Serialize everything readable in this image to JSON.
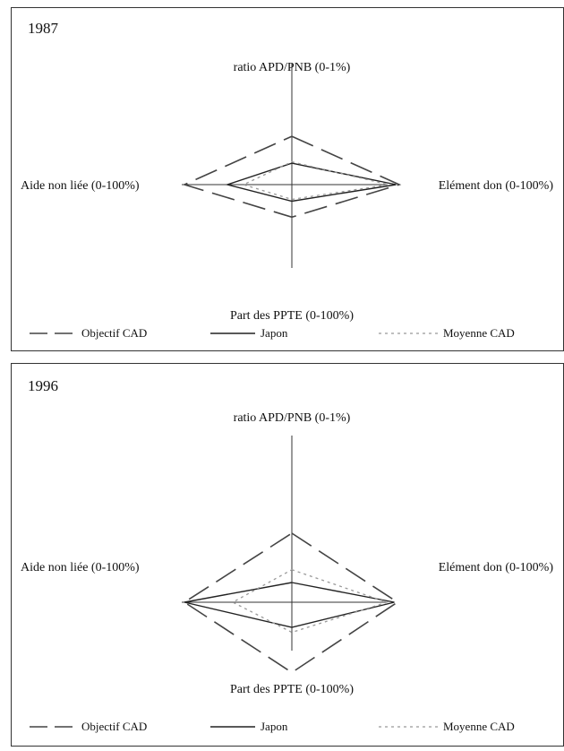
{
  "colors": {
    "objectif": "#444444",
    "japon": "#222222",
    "moyenne": "#999999",
    "axis": "#333333"
  },
  "chart_data": [
    {
      "type": "radar",
      "title": "1987",
      "axes": [
        {
          "label": "ratio APD/PNB (0-1%)",
          "range": [
            0,
            1
          ]
        },
        {
          "label": "Elément don (0-100%)",
          "range": [
            0,
            100
          ]
        },
        {
          "label": "Part des PPTE (0-100%)",
          "range": [
            0,
            100
          ]
        },
        {
          "label": "Aide non liée (0-100%)",
          "range": [
            0,
            100
          ]
        }
      ],
      "series": [
        {
          "name": "Objectif CAD",
          "style": "dashed",
          "values": [
            0.7,
            100,
            55,
            100
          ]
        },
        {
          "name": "Japon",
          "style": "solid",
          "values": [
            0.31,
            97,
            28,
            60
          ]
        },
        {
          "name": "Moyenne CAD",
          "style": "dotted",
          "values": [
            0.33,
            90,
            25,
            45
          ]
        }
      ]
    },
    {
      "type": "radar",
      "title": "1996",
      "axes": [
        {
          "label": "ratio APD/PNB (0-1%)",
          "range": [
            0,
            1
          ]
        },
        {
          "label": "Elément don (0-100%)",
          "range": [
            0,
            100
          ]
        },
        {
          "label": "Part des PPTE (0-100%)",
          "range": [
            0,
            100
          ]
        },
        {
          "label": "Aide non liée (0-100%)",
          "range": [
            0,
            100
          ]
        }
      ],
      "series": [
        {
          "name": "Objectif CAD",
          "style": "dashed",
          "values": [
            0.7,
            100,
            70,
            100
          ]
        },
        {
          "name": "Japon",
          "style": "solid",
          "values": [
            0.2,
            97,
            25,
            100
          ]
        },
        {
          "name": "Moyenne CAD",
          "style": "dotted",
          "values": [
            0.33,
            90,
            30,
            55
          ]
        }
      ]
    }
  ]
}
